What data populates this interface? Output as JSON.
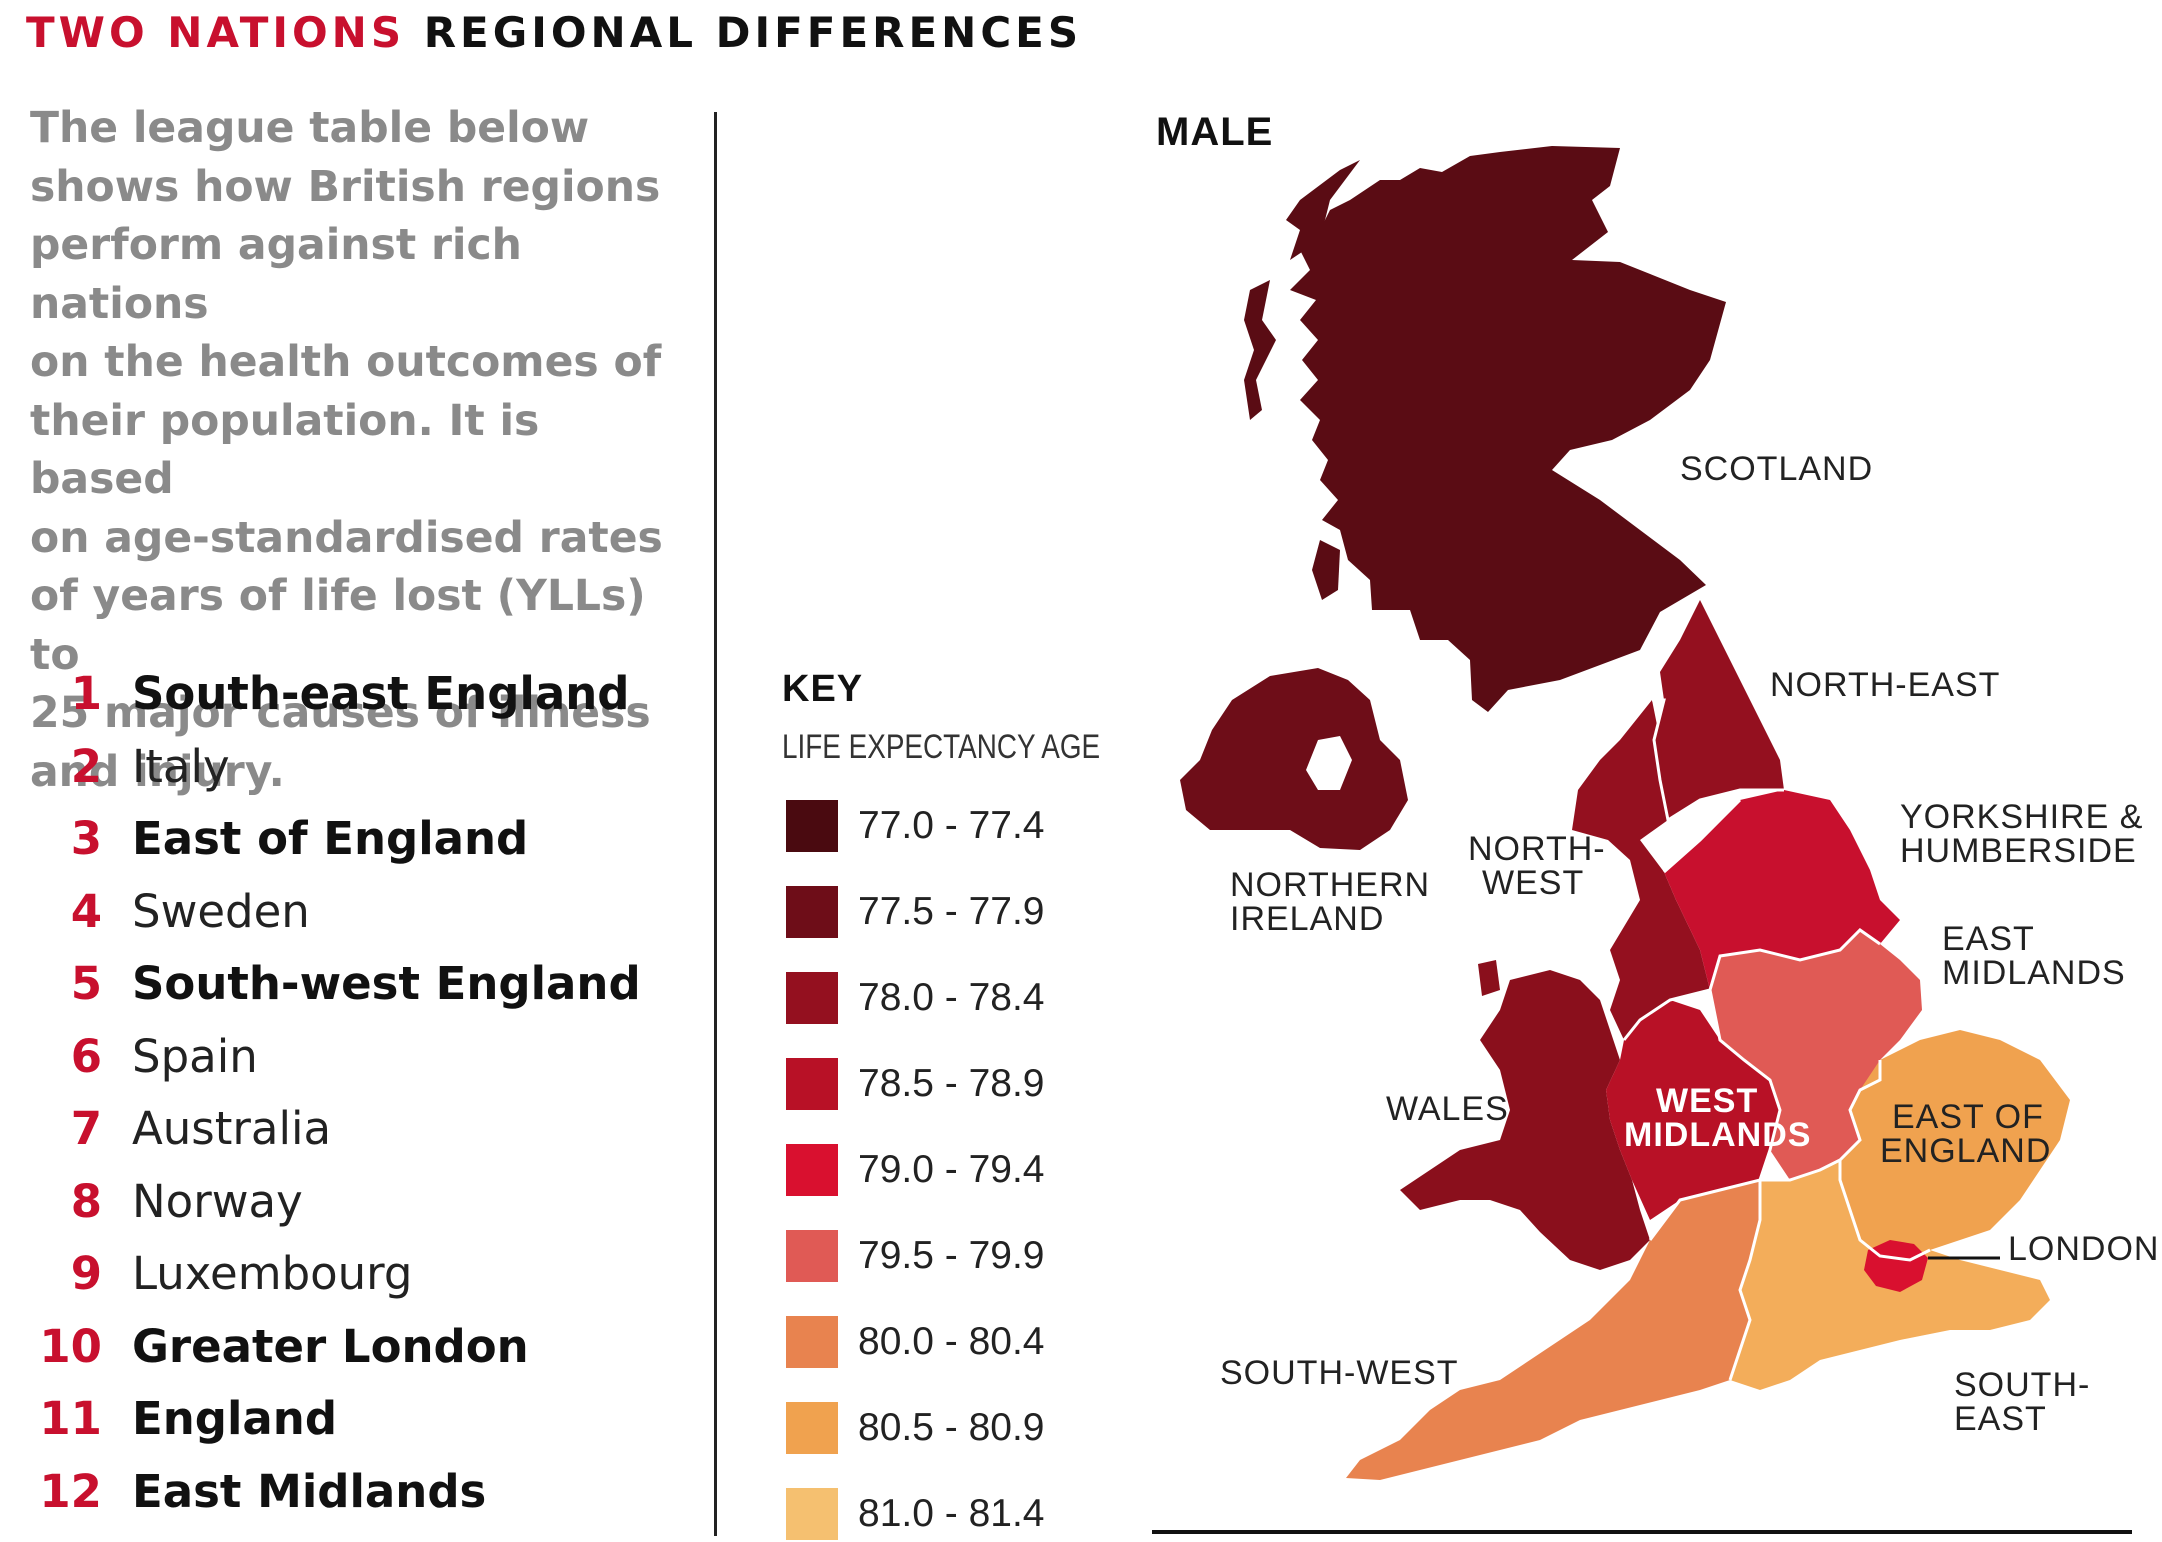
{
  "header": {
    "title_red": "TWO NATIONS",
    "title_black": "REGIONAL DIFFERENCES"
  },
  "intro": {
    "lines": [
      "The league table below",
      "shows how British regions",
      "perform against rich nations",
      "on the health outcomes of",
      "their population. It is based",
      "on age-standardised rates",
      "of years of life lost (YLLs) to",
      "25 major causes of illness",
      "and injury."
    ]
  },
  "league_table": [
    {
      "rank": "1",
      "name": "South-east England",
      "bold": true
    },
    {
      "rank": "2",
      "name": "Italy",
      "bold": false
    },
    {
      "rank": "3",
      "name": "East of England",
      "bold": true
    },
    {
      "rank": "4",
      "name": "Sweden",
      "bold": false
    },
    {
      "rank": "5",
      "name": "South-west England",
      "bold": true
    },
    {
      "rank": "6",
      "name": "Spain",
      "bold": false
    },
    {
      "rank": "7",
      "name": "Australia",
      "bold": false
    },
    {
      "rank": "8",
      "name": "Norway",
      "bold": false
    },
    {
      "rank": "9",
      "name": "Luxembourg",
      "bold": false
    },
    {
      "rank": "10",
      "name": "Greater London",
      "bold": true
    },
    {
      "rank": "11",
      "name": "England",
      "bold": true
    },
    {
      "rank": "12",
      "name": "East Midlands",
      "bold": true
    }
  ],
  "key": {
    "title": "KEY",
    "subtitle": "LIFE EXPECTANCY AGE",
    "items": [
      {
        "label": "77.0 - 77.4",
        "color": "#4a0a10"
      },
      {
        "label": "77.5 - 77.9",
        "color": "#6e0d18"
      },
      {
        "label": "78.0 - 78.4",
        "color": "#94101f"
      },
      {
        "label": "78.5 - 78.9",
        "color": "#b81126"
      },
      {
        "label": "79.0 - 79.4",
        "color": "#d9102f"
      },
      {
        "label": "79.5 - 79.9",
        "color": "#e05a55"
      },
      {
        "label": "80.0 - 80.4",
        "color": "#e8834f"
      },
      {
        "label": "80.5 - 80.9",
        "color": "#f0a24f"
      },
      {
        "label": "81.0 - 81.4",
        "color": "#f5c070"
      }
    ]
  },
  "map": {
    "title": "MALE",
    "regions": [
      {
        "name": "SCOTLAND",
        "color": "#5a0c14"
      },
      {
        "name": "NORTHERN IRELAND",
        "color": "#6e0d18"
      },
      {
        "name": "NORTH-EAST",
        "color": "#94101f"
      },
      {
        "name": "NORTH-WEST",
        "color": "#94101f"
      },
      {
        "name": "YORKSHIRE & HUMBERSIDE",
        "color": "#c8102e"
      },
      {
        "name": "WALES",
        "color": "#8a0f1c"
      },
      {
        "name": "WEST MIDLANDS",
        "color": "#b81126"
      },
      {
        "name": "EAST MIDLANDS",
        "color": "#e05a55"
      },
      {
        "name": "EAST OF ENGLAND",
        "color": "#f0a24f"
      },
      {
        "name": "LONDON",
        "color": "#d9102f"
      },
      {
        "name": "SOUTH-EAST",
        "color": "#f3ad5a"
      },
      {
        "name": "SOUTH-WEST",
        "color": "#e8834f"
      }
    ],
    "labels": {
      "scotland": "SCOTLAND",
      "north_east": "NORTH-EAST",
      "yorkshire_1": "YORKSHIRE &",
      "yorkshire_2": "HUMBERSIDE",
      "north_west_1": "NORTH-",
      "north_west_2": "WEST",
      "ni_1": "NORTHERN",
      "ni_2": "IRELAND",
      "east_midlands_1": "EAST",
      "east_midlands_2": "MIDLANDS",
      "wales": "WALES",
      "west_midlands_1": "WEST",
      "west_midlands_2": "MIDLANDS",
      "east_of_england_1": "EAST OF",
      "east_of_england_2": "ENGLAND",
      "london": "LONDON",
      "south_west": "SOUTH-WEST",
      "south_east_1": "SOUTH-",
      "south_east_2": "EAST"
    }
  }
}
